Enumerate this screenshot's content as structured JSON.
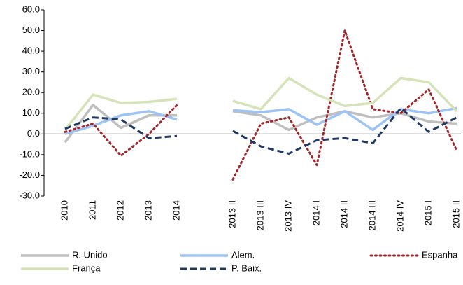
{
  "chart_data": {
    "type": "line",
    "categories": [
      "2010",
      "2011",
      "2012",
      "2013",
      "2014",
      null,
      "2013 II",
      "2013 III",
      "2013 IV",
      "2014 I",
      "2014 II",
      "2014 III",
      "2014 IV",
      "2015 I",
      "2015 II"
    ],
    "series": [
      {
        "name": "R. Unido",
        "color": "#bfbfbf",
        "dash": "solid",
        "values": [
          -4,
          14,
          3,
          9,
          9,
          null,
          11,
          9,
          2,
          8,
          11,
          8,
          10,
          6,
          5
        ]
      },
      {
        "name": "Alem.",
        "color": "#9dc3f5",
        "dash": "solid",
        "values": [
          0,
          4,
          9,
          11,
          7,
          null,
          11.5,
          10.5,
          12,
          4.5,
          11,
          2,
          12,
          10,
          12.5
        ]
      },
      {
        "name": "Espanha",
        "color": "#a3262a",
        "dash": "dotted",
        "values": [
          1,
          5,
          -10.5,
          0,
          14,
          null,
          -22,
          5,
          8,
          -15,
          50,
          12,
          10,
          21.5,
          -8
        ]
      },
      {
        "name": "França",
        "color": "#d5e4b8",
        "dash": "solid",
        "values": [
          2,
          19,
          15,
          15.5,
          17,
          null,
          16,
          12,
          27,
          19,
          13.5,
          15,
          27,
          25,
          11
        ]
      },
      {
        "name": "P. Baix.",
        "color": "#1f3864",
        "dash": "dashed",
        "values": [
          2.5,
          8,
          7,
          -2,
          -1,
          null,
          1.5,
          -6,
          -9.5,
          -3,
          -2,
          -4.5,
          12.5,
          1,
          8
        ]
      }
    ],
    "ylim": [
      -30,
      60
    ],
    "yticks": [
      {
        "value": -30,
        "label": "-30.0"
      },
      {
        "value": -20,
        "label": "-20.0"
      },
      {
        "value": -10,
        "label": "-10.0"
      },
      {
        "value": 0,
        "label": "0.0"
      },
      {
        "value": 10,
        "label": "10.0"
      },
      {
        "value": 20,
        "label": "20.0"
      },
      {
        "value": 30,
        "label": "30.0"
      },
      {
        "value": 40,
        "label": "40.0"
      },
      {
        "value": 50,
        "label": "50.0"
      },
      {
        "value": 60,
        "label": "60.0"
      }
    ]
  }
}
